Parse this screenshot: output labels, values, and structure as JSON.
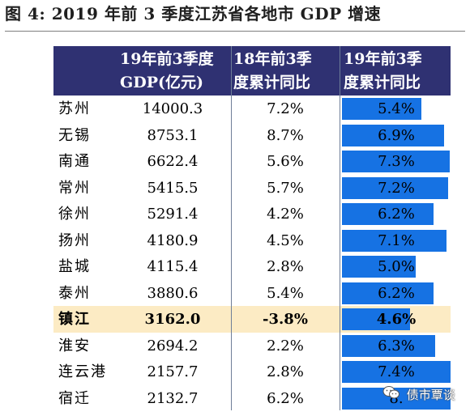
{
  "figure": {
    "title": "图 4:  2019 年前 3 季度江苏省各地市 GDP 增速"
  },
  "table": {
    "headers": {
      "col_gdp": [
        "19年前3季度",
        "GDP(亿元)"
      ],
      "col_18": [
        "18年前3季",
        "度累计同比"
      ],
      "col_19": [
        "19年前3季",
        "度累计同比"
      ]
    },
    "rows": [
      {
        "city": "苏州",
        "gdp": "14000.3",
        "g18": "7.2%",
        "g19": "5.4%",
        "g19_value": 5.4
      },
      {
        "city": "无锡",
        "gdp": "8753.1",
        "g18": "8.7%",
        "g19": "6.9%",
        "g19_value": 6.9
      },
      {
        "city": "南通",
        "gdp": "6622.4",
        "g18": "5.6%",
        "g19": "7.3%",
        "g19_value": 7.3
      },
      {
        "city": "常州",
        "gdp": "5415.5",
        "g18": "5.7%",
        "g19": "7.2%",
        "g19_value": 7.2
      },
      {
        "city": "徐州",
        "gdp": "5291.4",
        "g18": "4.2%",
        "g19": "6.2%",
        "g19_value": 6.2
      },
      {
        "city": "扬州",
        "gdp": "4180.9",
        "g18": "4.5%",
        "g19": "7.1%",
        "g19_value": 7.1
      },
      {
        "city": "盐城",
        "gdp": "4115.4",
        "g18": "2.8%",
        "g19": "5.0%",
        "g19_value": 5.0
      },
      {
        "city": "泰州",
        "gdp": "3880.6",
        "g18": "5.4%",
        "g19": "6.2%",
        "g19_value": 6.2
      },
      {
        "city": "镇江",
        "gdp": "3162.0",
        "g18": "-3.8%",
        "g19": "4.6%",
        "g19_value": 4.6,
        "highlight": true
      },
      {
        "city": "淮安",
        "gdp": "2694.2",
        "g18": "2.2%",
        "g19": "6.3%",
        "g19_value": 6.3
      },
      {
        "city": "连云港",
        "gdp": "2157.7",
        "g18": "2.8%",
        "g19": "7.4%",
        "g19_value": 7.4
      },
      {
        "city": "宿迁",
        "gdp": "2132.7",
        "g18": "6.2%",
        "g19": "8.",
        "g19_value": 8.0
      }
    ]
  },
  "watermark": {
    "text": "债市覃谈",
    "icon": "wechat-icon"
  },
  "colors": {
    "header_bg": "#2f3172",
    "bar": "#1672e3",
    "highlight_row": "#fcebc4"
  }
}
